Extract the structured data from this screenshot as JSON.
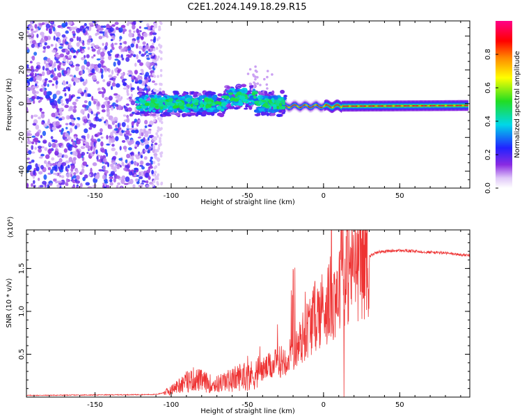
{
  "figure_title": "C2E1.2024.149.18.29.R15",
  "colors": {
    "snr_line": "#ee3333",
    "axis": "#000000",
    "colormap": [
      "#ffffff",
      "#e0c8f8",
      "#8a2be2",
      "#2222ff",
      "#00d8e8",
      "#22dd22",
      "#ffff00",
      "#ff8800",
      "#ff0000",
      "#ff0088"
    ]
  },
  "chart_data": [
    {
      "type": "heatmap",
      "title": "C2E1.2024.149.18.29.R15",
      "xlabel": "Height of straight line (km)",
      "ylabel": "Frequency (Hz)",
      "xlim": [
        -195,
        96
      ],
      "ylim": [
        -50,
        49
      ],
      "xticks": [
        -150,
        -100,
        -50,
        0,
        50
      ],
      "yticks": [
        40,
        20,
        0,
        -20,
        -40
      ],
      "colorbar": {
        "label": "Normalized spectral amplitude",
        "range": [
          0,
          1
        ],
        "ticks": [
          0.0,
          0.2,
          0.4,
          0.6,
          0.8
        ]
      },
      "regions": [
        {
          "x": [
            -195,
            -110
          ],
          "freq_range": [
            -50,
            49
          ],
          "amplitude": [
            0.1,
            0.3
          ],
          "note": "noise"
        },
        {
          "x": [
            -122,
            -25
          ],
          "center_freq": 0,
          "spread_hz": 6,
          "amplitude": [
            0.2,
            0.5
          ]
        },
        {
          "x": [
            -25,
            96
          ],
          "center_freq": -1.5,
          "spread_hz": 2,
          "amplitude": [
            0.5,
            0.95
          ]
        }
      ]
    },
    {
      "type": "line",
      "title": "",
      "xlabel": "Height of straight line (km)",
      "ylabel": "SNR (10 * v/v)",
      "exponent_label": "(x10⁴)",
      "xlim": [
        -195,
        96
      ],
      "ylim": [
        0,
        1.95
      ],
      "xticks": [
        -150,
        -100,
        -50,
        0,
        50
      ],
      "yticks": [
        0.5,
        1.0,
        1.5
      ],
      "ytick_labels": [
        "0.5",
        "1.0",
        "1.5"
      ],
      "series": [
        {
          "name": "SNR",
          "x": [
            -195,
            -150,
            -110,
            -103,
            -100,
            -95,
            -90,
            -85,
            -80,
            -75,
            -70,
            -65,
            -60,
            -55,
            -50,
            -45,
            -40,
            -35,
            -30,
            -25,
            -20,
            -18,
            -15,
            -10,
            -5,
            0,
            5,
            10,
            15,
            20,
            25,
            30,
            35,
            40,
            50,
            60,
            70,
            80,
            90,
            96
          ],
          "values": [
            0.02,
            0.025,
            0.03,
            0.06,
            0.08,
            0.14,
            0.18,
            0.21,
            0.19,
            0.16,
            0.15,
            0.18,
            0.2,
            0.24,
            0.24,
            0.27,
            0.32,
            0.36,
            0.4,
            0.45,
            0.5,
            0.55,
            0.65,
            0.82,
            0.96,
            1.05,
            1.15,
            1.28,
            1.45,
            1.55,
            1.6,
            1.64,
            1.69,
            1.7,
            1.71,
            1.7,
            1.69,
            1.68,
            1.66,
            1.65
          ]
        }
      ]
    }
  ]
}
